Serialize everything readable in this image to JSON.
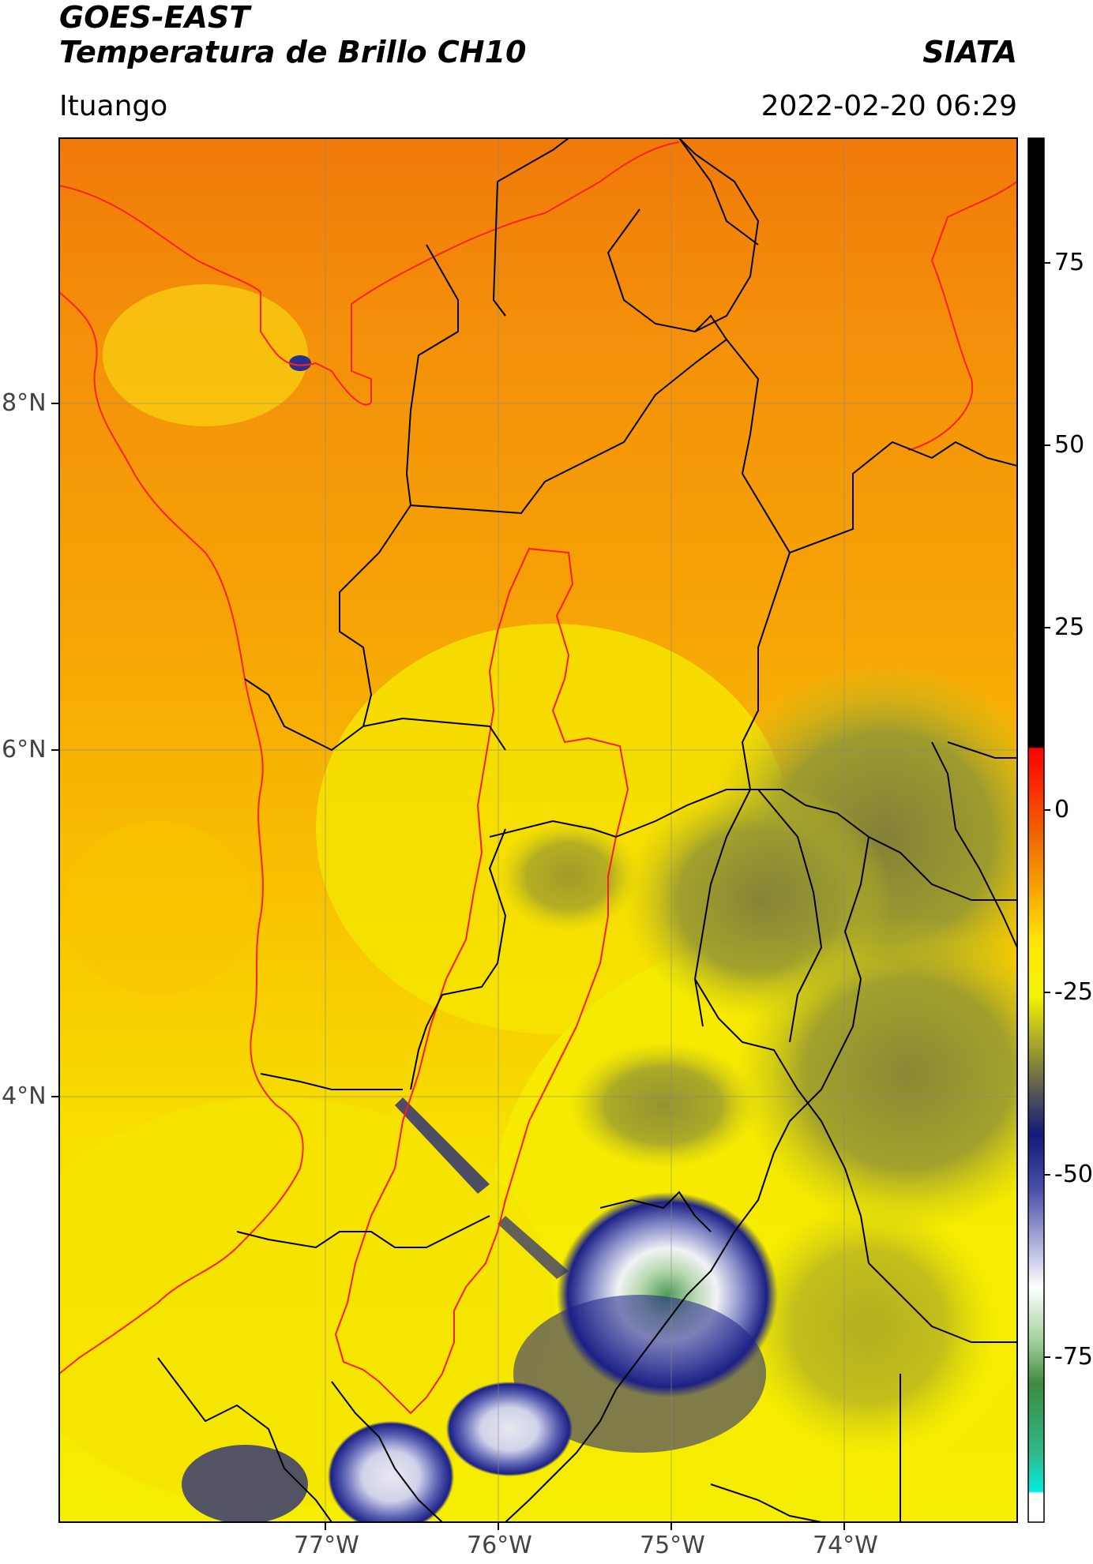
{
  "header": {
    "satellite": "GOES-EAST",
    "product": "Temperatura de Brillo CH10",
    "brand": "SIATA",
    "location": "Ituango",
    "timestamp": "2022-02-20 06:29"
  },
  "map": {
    "lon_labels": [
      "77°W",
      "76°W",
      "75°W",
      "74°W"
    ],
    "lat_labels": [
      "8°N",
      "6°N",
      "4°N"
    ],
    "colors": {
      "warm": "#f39c0a",
      "yellow": "#f7ef00",
      "olive": "#8f8f32",
      "navy": "#1c1f84",
      "white": "#f4f4f6",
      "green": "#5fa55f",
      "boundary": "#000000",
      "basin": "#ff1a1a"
    }
  },
  "colorbar": {
    "ticks": [
      "75",
      "50",
      "25",
      "0",
      "-25",
      "-50",
      "-75"
    ]
  }
}
